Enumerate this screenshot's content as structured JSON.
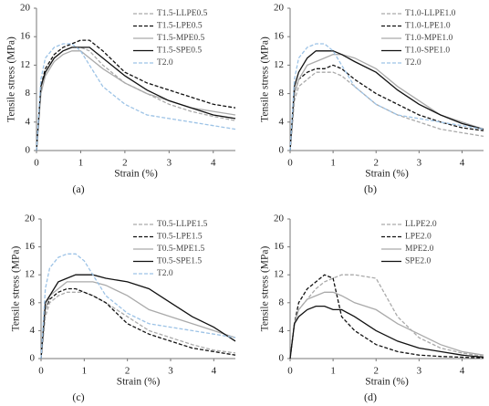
{
  "chart_data": [
    {
      "type": "line",
      "label": "(a)",
      "xlabel": "Strain (%)",
      "ylabel": "Tensile stress (MPa)",
      "xlim": [
        0,
        4.5
      ],
      "xticks": [
        0,
        1,
        2,
        3,
        4
      ],
      "ylim": [
        0,
        20
      ],
      "yticks": [
        0,
        4,
        8,
        12,
        16,
        20
      ],
      "legend": "upper right",
      "grid": false,
      "x": [
        0,
        0.1,
        0.2,
        0.4,
        0.6,
        0.8,
        1.0,
        1.2,
        1.5,
        2,
        2.5,
        3,
        3.5,
        4,
        4.5
      ],
      "series": [
        {
          "name": "T1.5-LLPE0.5",
          "color": "#aaaaaa",
          "linestyle": "dashed",
          "values": [
            0,
            8,
            11,
            13,
            14,
            14.5,
            14.5,
            14,
            12,
            9.5,
            8,
            6.5,
            5.5,
            4.8,
            4.2
          ]
        },
        {
          "name": "T1.5-LPE0.5",
          "color": "#111111",
          "linestyle": "dashed",
          "values": [
            0,
            9,
            11.5,
            13.5,
            14.5,
            15,
            15.5,
            15.5,
            14,
            11,
            9.5,
            8.5,
            7.5,
            6.5,
            6
          ]
        },
        {
          "name": "T1.5-MPE0.5",
          "color": "#aaaaaa",
          "linestyle": "solid",
          "values": [
            0,
            8,
            10.5,
            12.5,
            13.5,
            14,
            14,
            13,
            11.5,
            9.5,
            8,
            7,
            6,
            5.5,
            5
          ]
        },
        {
          "name": "T1.5-SPE0.5",
          "color": "#111111",
          "linestyle": "solid",
          "values": [
            0,
            9,
            11,
            13,
            14,
            14.5,
            14.5,
            14.5,
            13,
            10.5,
            8.5,
            7,
            6,
            5,
            4.5
          ]
        },
        {
          "name": "T2.0",
          "color": "#9dc3e6",
          "linestyle": "dashed",
          "values": [
            0,
            10,
            13,
            14.5,
            15,
            15,
            14,
            12,
            9,
            6.5,
            5,
            4.5,
            4,
            3.5,
            3
          ]
        }
      ]
    },
    {
      "type": "line",
      "label": "(b)",
      "xlabel": "Strain (%)",
      "ylabel": "Tensile stress (MPa)",
      "xlim": [
        0,
        4.5
      ],
      "xticks": [
        0,
        1,
        2,
        3,
        4
      ],
      "ylim": [
        0,
        20
      ],
      "yticks": [
        0,
        4,
        8,
        12,
        16,
        20
      ],
      "legend": "upper right",
      "grid": false,
      "x": [
        0,
        0.1,
        0.2,
        0.4,
        0.6,
        0.8,
        1.0,
        1.2,
        1.5,
        2,
        2.5,
        3,
        3.5,
        4,
        4.5
      ],
      "series": [
        {
          "name": "T1.0-LLPE1.0",
          "color": "#aaaaaa",
          "linestyle": "dashed",
          "values": [
            0,
            7,
            9,
            10,
            11,
            11,
            11,
            10.5,
            9,
            6.5,
            5,
            4,
            3,
            2.5,
            2
          ]
        },
        {
          "name": "T1.0-LPE1.0",
          "color": "#111111",
          "linestyle": "dashed",
          "values": [
            0,
            8,
            10,
            11,
            11.5,
            11.5,
            12,
            11.5,
            10,
            8,
            6.5,
            5,
            4,
            3.2,
            2.8
          ]
        },
        {
          "name": "T1.0-MPE1.0",
          "color": "#aaaaaa",
          "linestyle": "solid",
          "values": [
            0,
            8,
            10,
            12,
            12.5,
            13,
            13.5,
            13.5,
            13,
            11.5,
            9,
            7,
            5,
            4,
            3
          ]
        },
        {
          "name": "T1.0-SPE1.0",
          "color": "#111111",
          "linestyle": "solid",
          "values": [
            0,
            9,
            11,
            13,
            14,
            14,
            14,
            13.5,
            12.5,
            11,
            8.5,
            6.5,
            5,
            3.8,
            3
          ]
        },
        {
          "name": "T2.0",
          "color": "#9dc3e6",
          "linestyle": "dashed",
          "values": [
            0,
            10,
            13,
            14.5,
            15,
            15,
            14,
            12,
            9,
            6.5,
            5,
            4.5,
            4,
            3.5,
            3
          ]
        }
      ]
    },
    {
      "type": "line",
      "label": "(c)",
      "xlabel": "Strain (%)",
      "ylabel": "Tensile stress (MPa)",
      "xlim": [
        0,
        4.5
      ],
      "xticks": [
        0,
        1,
        2,
        3,
        4
      ],
      "ylim": [
        0,
        20
      ],
      "yticks": [
        0,
        4,
        8,
        12,
        16,
        20
      ],
      "legend": "upper right",
      "grid": false,
      "x": [
        0,
        0.1,
        0.2,
        0.4,
        0.6,
        0.8,
        1.0,
        1.2,
        1.5,
        2,
        2.5,
        3,
        3.5,
        4,
        4.5
      ],
      "series": [
        {
          "name": "T0.5-LLPE1.5",
          "color": "#aaaaaa",
          "linestyle": "dashed",
          "values": [
            0,
            6,
            8,
            9,
            9.5,
            9.5,
            9.5,
            9,
            8,
            6,
            4,
            3,
            2,
            1.2,
            0.8
          ]
        },
        {
          "name": "T0.5-LPE1.5",
          "color": "#111111",
          "linestyle": "dashed",
          "values": [
            0,
            7,
            8.5,
            9.5,
            10,
            10,
            9.5,
            9,
            8,
            5,
            3.5,
            2.5,
            1.5,
            1,
            0.5
          ]
        },
        {
          "name": "T0.5-MPE1.5",
          "color": "#aaaaaa",
          "linestyle": "solid",
          "values": [
            0,
            7,
            9,
            10,
            11,
            11,
            11,
            11,
            10.5,
            9,
            7,
            6,
            5,
            4,
            3
          ]
        },
        {
          "name": "T0.5-SPE1.5",
          "color": "#111111",
          "linestyle": "solid",
          "values": [
            0,
            8,
            9,
            11,
            11.5,
            12,
            12,
            12,
            11.5,
            11,
            10,
            8,
            6,
            4.5,
            2.5
          ]
        },
        {
          "name": "T2.0",
          "color": "#9dc3e6",
          "linestyle": "dashed",
          "values": [
            0,
            10,
            13,
            14.5,
            15,
            15,
            14,
            12,
            9,
            6.5,
            5,
            4.5,
            4,
            3.5,
            3
          ]
        }
      ]
    },
    {
      "type": "line",
      "label": "(d)",
      "xlabel": "Strain (%)",
      "ylabel": "Tensile stress (MPa)",
      "xlim": [
        0,
        4.5
      ],
      "xticks": [
        0,
        1,
        2,
        3,
        4
      ],
      "ylim": [
        0,
        20
      ],
      "yticks": [
        0,
        4,
        8,
        12,
        16,
        20
      ],
      "legend": "upper right",
      "grid": false,
      "x": [
        0,
        0.1,
        0.2,
        0.4,
        0.6,
        0.8,
        1.0,
        1.2,
        1.5,
        2,
        2.5,
        3,
        3.5,
        4,
        4.5
      ],
      "series": [
        {
          "name": "LLPE2.0",
          "color": "#aaaaaa",
          "linestyle": "dashed",
          "values": [
            0,
            5,
            7,
            8.5,
            10,
            11,
            11.5,
            12,
            12,
            11.5,
            6,
            3,
            1.5,
            0.8,
            0.3
          ]
        },
        {
          "name": "LPE2.0",
          "color": "#111111",
          "linestyle": "dashed",
          "values": [
            0,
            5,
            8,
            10,
            11,
            12,
            11.5,
            6,
            4,
            2,
            1,
            0.5,
            0.3,
            0.2,
            0.1
          ]
        },
        {
          "name": "MPE2.0",
          "color": "#aaaaaa",
          "linestyle": "solid",
          "values": [
            0,
            5,
            7,
            8.5,
            9,
            9.5,
            9.5,
            9,
            8,
            7,
            5,
            3.5,
            2,
            1,
            0.5
          ]
        },
        {
          "name": "SPE2.0",
          "color": "#111111",
          "linestyle": "solid",
          "values": [
            0,
            5,
            6,
            7,
            7.5,
            7.5,
            7,
            7,
            6,
            4,
            2.5,
            1.5,
            1,
            0.5,
            0.2
          ]
        }
      ]
    }
  ]
}
